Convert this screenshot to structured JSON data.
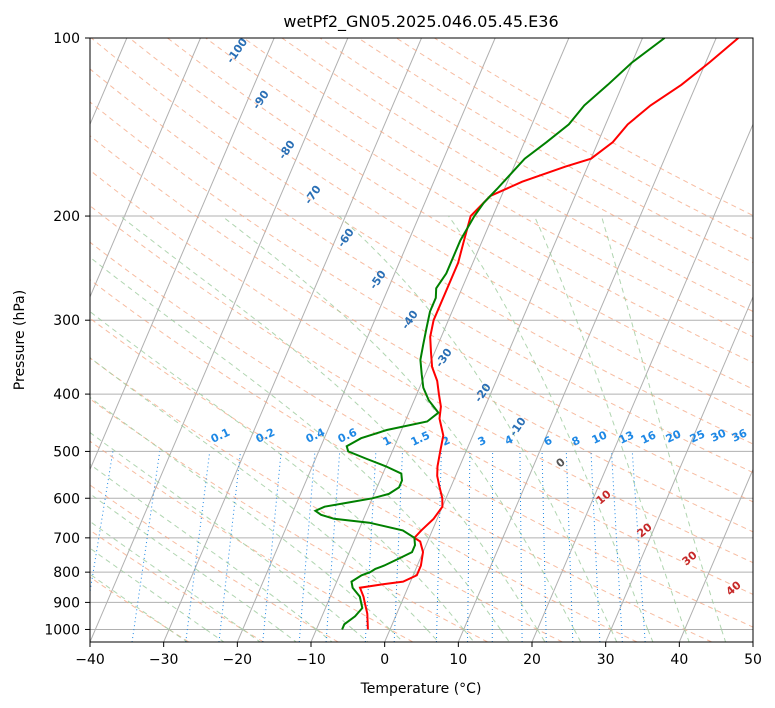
{
  "chart_data": {
    "type": "line",
    "title": "wetPf2_GN05.2025.046.05.45.E36",
    "xlabel": "Temperature (°C)",
    "ylabel": "Pressure (hPa)",
    "xlim": [
      -40,
      50
    ],
    "ylim": [
      1050,
      100
    ],
    "y_scale": "log",
    "x_ticks": [
      -40,
      -30,
      -20,
      -10,
      0,
      10,
      20,
      30,
      40,
      50
    ],
    "x_tick_labels": [
      "−40",
      "−30",
      "−20",
      "−10",
      "0",
      "10",
      "20",
      "30",
      "40",
      "50"
    ],
    "y_ticks": [
      1000,
      900,
      800,
      700,
      600,
      500,
      400,
      300,
      200,
      100
    ],
    "y_tick_labels": [
      "1000",
      "900",
      "800",
      "700",
      "600",
      "500",
      "400",
      "300",
      "200",
      "100"
    ],
    "grid": true,
    "series": [
      {
        "color": "#ff0000",
        "points": [
          [
            -3,
            1000
          ],
          [
            -3.5,
            970
          ],
          [
            -4,
            940
          ],
          [
            -5,
            900
          ],
          [
            -5.5,
            880
          ],
          [
            -6.5,
            850
          ],
          [
            -4,
            840
          ],
          [
            -1,
            830
          ],
          [
            0.5,
            810
          ],
          [
            0.5,
            780
          ],
          [
            0,
            740
          ],
          [
            -1,
            710
          ],
          [
            -2,
            700
          ],
          [
            -1.5,
            680
          ],
          [
            -0.5,
            650
          ],
          [
            0,
            620
          ],
          [
            -0.5,
            600
          ],
          [
            -1.5,
            575
          ],
          [
            -2.5,
            550
          ],
          [
            -3,
            530
          ],
          [
            -3.5,
            500
          ],
          [
            -4,
            470
          ],
          [
            -5.5,
            440
          ],
          [
            -6,
            420
          ],
          [
            -7,
            400
          ],
          [
            -8,
            380
          ],
          [
            -9.5,
            360
          ],
          [
            -10.5,
            340
          ],
          [
            -11.5,
            320
          ],
          [
            -12,
            300
          ],
          [
            -12,
            270
          ],
          [
            -12,
            240
          ],
          [
            -12.5,
            220
          ],
          [
            -13,
            200
          ],
          [
            -11.5,
            185
          ],
          [
            -8,
            175
          ],
          [
            -3,
            165
          ],
          [
            0,
            160
          ],
          [
            2,
            150
          ],
          [
            3,
            140
          ],
          [
            5,
            130
          ],
          [
            8,
            120
          ],
          [
            10.5,
            110
          ],
          [
            13,
            100
          ]
        ]
      },
      {
        "color": "#008000",
        "points": [
          [
            -6.5,
            1000
          ],
          [
            -6.5,
            980
          ],
          [
            -5.5,
            950
          ],
          [
            -5,
            920
          ],
          [
            -6,
            880
          ],
          [
            -7.5,
            850
          ],
          [
            -8,
            830
          ],
          [
            -7,
            810
          ],
          [
            -6,
            800
          ],
          [
            -5.5,
            790
          ],
          [
            -4.5,
            780
          ],
          [
            -3,
            760
          ],
          [
            -1.5,
            740
          ],
          [
            -1.5,
            720
          ],
          [
            -2,
            700
          ],
          [
            -4,
            680
          ],
          [
            -9,
            660
          ],
          [
            -14,
            650
          ],
          [
            -16,
            640
          ],
          [
            -17,
            630
          ],
          [
            -16,
            620
          ],
          [
            -13,
            610
          ],
          [
            -10,
            600
          ],
          [
            -8,
            590
          ],
          [
            -7,
            575
          ],
          [
            -7,
            560
          ],
          [
            -7.5,
            545
          ],
          [
            -10,
            530
          ],
          [
            -13,
            515
          ],
          [
            -16,
            500
          ],
          [
            -16.5,
            490
          ],
          [
            -15,
            475
          ],
          [
            -12,
            460
          ],
          [
            -7,
            445
          ],
          [
            -6,
            430
          ],
          [
            -8,
            410
          ],
          [
            -9.5,
            390
          ],
          [
            -10.5,
            370
          ],
          [
            -11.5,
            350
          ],
          [
            -12,
            330
          ],
          [
            -12.5,
            310
          ],
          [
            -13,
            290
          ],
          [
            -13,
            275
          ],
          [
            -13.5,
            265
          ],
          [
            -13,
            250
          ],
          [
            -13,
            220
          ],
          [
            -12.5,
            200
          ],
          [
            -12,
            190
          ],
          [
            -11,
            180
          ],
          [
            -9,
            160
          ],
          [
            -7,
            150
          ],
          [
            -5,
            140
          ],
          [
            -4,
            130
          ],
          [
            -2,
            120
          ],
          [
            0,
            110
          ],
          [
            3,
            100
          ]
        ]
      }
    ],
    "isotherm_labels": [
      "-100",
      "-90",
      "-80",
      "-70",
      "-60",
      "-50",
      "-40",
      "-30",
      "-20",
      "-10"
    ],
    "mixing_ratio_labels": [
      "0.1",
      "0.2",
      "0.4",
      "0.6",
      "1",
      "1.5",
      "2",
      "3",
      "4",
      "6",
      "8",
      "10",
      "13",
      "16",
      "20",
      "25",
      "30",
      "36"
    ],
    "moist_adiabat_labels": [
      "0",
      "10",
      "20",
      "30",
      "40"
    ],
    "colors": {
      "isotherm_text": "#2a6fb5",
      "mixing_ratio": "#1e88e5",
      "dry_adiabat": "#f4a582",
      "moist_adiabat": "#9ccb9c",
      "grid": "#b0b0b0"
    }
  }
}
